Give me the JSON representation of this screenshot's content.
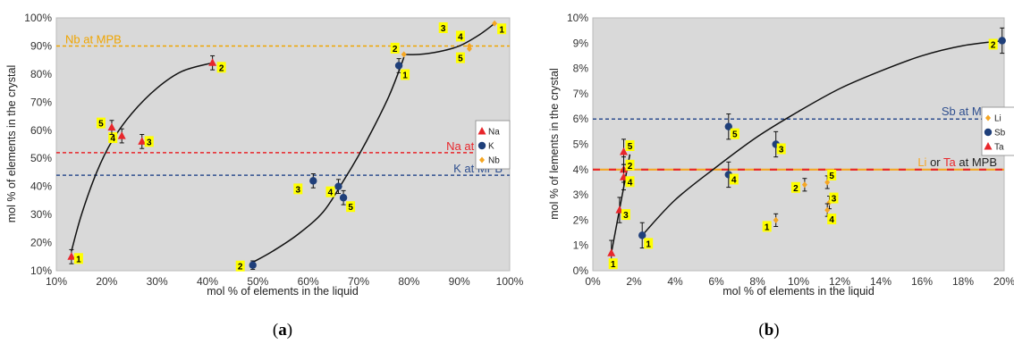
{
  "chart_data": [
    {
      "id": "a",
      "type": "scatter",
      "caption": "(a)",
      "caption_letter": "a",
      "xlabel": "mol % of elements in the liquid",
      "ylabel": "mol % of elements in the crystal",
      "xlim": [
        10,
        100
      ],
      "ylim": [
        10,
        100
      ],
      "x_ticks": [
        "10%",
        "20%",
        "30%",
        "40%",
        "50%",
        "60%",
        "70%",
        "80%",
        "90%",
        "100%"
      ],
      "y_ticks": [
        "10%",
        "20%",
        "30%",
        "40%",
        "50%",
        "60%",
        "70%",
        "80%",
        "90%",
        "100%"
      ],
      "grid": false,
      "legend_position": "right",
      "reference_lines": [
        {
          "text": "Nb at MPB",
          "y": 90,
          "color": "#f0a500"
        },
        {
          "text": "Na at MPB",
          "y": 52,
          "color": "#e8262b"
        },
        {
          "text": "K at MPB",
          "y": 44,
          "color": "#2f4f8f"
        }
      ],
      "series": [
        {
          "name": "Na",
          "marker": "triangle",
          "color": "#e8262b",
          "points": [
            {
              "x": 13,
              "y": 15,
              "err": 2.5,
              "label": "1"
            },
            {
              "x": 41,
              "y": 84,
              "err": 2.5,
              "label": "2"
            },
            {
              "x": 27,
              "y": 56,
              "err": 2.5,
              "label": "3"
            },
            {
              "x": 23,
              "y": 58,
              "err": 2.5,
              "label": "4"
            },
            {
              "x": 21,
              "y": 61,
              "err": 2.5,
              "label": "5"
            }
          ]
        },
        {
          "name": "K",
          "marker": "circle",
          "color": "#1f3f7a",
          "points": [
            {
              "x": 78,
              "y": 83,
              "err": 2.5,
              "label": "1"
            },
            {
              "x": 49,
              "y": 12,
              "err": 1.5,
              "label": "2"
            },
            {
              "x": 61,
              "y": 42,
              "err": 2.5,
              "label": "3"
            },
            {
              "x": 66,
              "y": 40,
              "err": 2.5,
              "label": "4"
            },
            {
              "x": 67,
              "y": 36,
              "err": 2.5,
              "label": "5"
            }
          ]
        },
        {
          "name": "Nb",
          "marker": "diamond",
          "color": "#f5a623",
          "points": [
            {
              "x": 97,
              "y": 98,
              "err": 0,
              "label": "1"
            },
            {
              "x": 79,
              "y": 87,
              "err": 0,
              "label": "2"
            },
            {
              "x": 90,
              "y": 93,
              "err": 0,
              "label": "3"
            },
            {
              "x": 92,
              "y": 90,
              "err": 0,
              "label": "4"
            },
            {
              "x": 92,
              "y": 89,
              "err": 0,
              "label": "5"
            }
          ]
        }
      ],
      "trend_curves": [
        [
          [
            13,
            17
          ],
          [
            15,
            30
          ],
          [
            18,
            45
          ],
          [
            21,
            56
          ],
          [
            25,
            66
          ],
          [
            30,
            75
          ],
          [
            35,
            81
          ],
          [
            41,
            84
          ]
        ],
        [
          [
            49,
            13
          ],
          [
            53,
            17
          ],
          [
            58,
            23
          ],
          [
            63,
            31
          ],
          [
            67,
            42
          ],
          [
            70,
            51
          ],
          [
            73,
            61
          ],
          [
            76,
            72
          ],
          [
            78,
            81
          ],
          [
            79,
            86
          ]
        ],
        [
          [
            79,
            87
          ],
          [
            82,
            87
          ],
          [
            86,
            88
          ],
          [
            90,
            90
          ],
          [
            94,
            94
          ],
          [
            97,
            98
          ]
        ]
      ]
    },
    {
      "id": "b",
      "type": "scatter",
      "caption": "(b)",
      "caption_letter": "b",
      "xlabel": "mol % of elements in the liquid",
      "ylabel": "mol % of lements in the crystal",
      "xlim": [
        0,
        20
      ],
      "ylim": [
        0,
        10
      ],
      "x_ticks": [
        "0%",
        "2%",
        "4%",
        "6%",
        "8%",
        "10%",
        "12%",
        "14%",
        "16%",
        "18%",
        "20%"
      ],
      "y_ticks": [
        "0%",
        "1%",
        "2%",
        "3%",
        "4%",
        "5%",
        "6%",
        "7%",
        "8%",
        "9%",
        "10%"
      ],
      "grid": false,
      "legend_position": "right",
      "reference_lines": [
        {
          "text": "Sb at MPB",
          "y": 6,
          "color": "#2f4f8f",
          "style": "blue-dash"
        },
        {
          "y": 4,
          "style": "orange-red-dash"
        }
      ],
      "ref_label_li_ta": {
        "part1": "Li",
        "part2": " or ",
        "part3": "Ta",
        "part4": " at MPB"
      },
      "series": [
        {
          "name": "Li",
          "marker": "diamond",
          "color": "#f5a623",
          "points": [
            {
              "x": 8.9,
              "y": 2.0,
              "err": 0.25,
              "label": "1"
            },
            {
              "x": 10.3,
              "y": 3.4,
              "err": 0.25,
              "label": "2"
            },
            {
              "x": 11.5,
              "y": 2.7,
              "err": 0.25,
              "label": "3"
            },
            {
              "x": 11.4,
              "y": 2.4,
              "err": 0.25,
              "label": "4"
            },
            {
              "x": 11.4,
              "y": 3.5,
              "err": 0.25,
              "label": "5"
            }
          ]
        },
        {
          "name": "Sb",
          "marker": "circle",
          "color": "#1f3f7a",
          "points": [
            {
              "x": 2.4,
              "y": 1.4,
              "err": 0.5,
              "label": "1"
            },
            {
              "x": 19.9,
              "y": 9.1,
              "err": 0.5,
              "label": "2"
            },
            {
              "x": 8.9,
              "y": 5.0,
              "err": 0.5,
              "label": "3"
            },
            {
              "x": 6.6,
              "y": 3.8,
              "err": 0.5,
              "label": "4"
            },
            {
              "x": 6.6,
              "y": 5.7,
              "err": 0.5,
              "label": "5"
            }
          ]
        },
        {
          "name": "Ta",
          "marker": "triangle",
          "color": "#e8262b",
          "points": [
            {
              "x": 0.9,
              "y": 0.7,
              "err": 0.5,
              "label": "1"
            },
            {
              "x": 1.5,
              "y": 4.0,
              "err": 0.5,
              "label": "2"
            },
            {
              "x": 1.3,
              "y": 2.4,
              "err": 0.5,
              "label": "3"
            },
            {
              "x": 1.5,
              "y": 3.7,
              "err": 0.5,
              "label": "4"
            },
            {
              "x": 1.5,
              "y": 4.7,
              "err": 0.5,
              "label": "5"
            }
          ]
        }
      ],
      "trend_curves": [
        [
          [
            0.9,
            0.7
          ],
          [
            1.2,
            2.0
          ],
          [
            1.5,
            3.3
          ],
          [
            1.8,
            4.6
          ]
        ],
        [
          [
            2.4,
            1.4
          ],
          [
            4,
            2.8
          ],
          [
            6,
            4.1
          ],
          [
            8,
            5.3
          ],
          [
            10,
            6.3
          ],
          [
            12,
            7.2
          ],
          [
            14,
            7.9
          ],
          [
            16,
            8.5
          ],
          [
            18,
            8.9
          ],
          [
            20,
            9.1
          ]
        ]
      ]
    }
  ]
}
